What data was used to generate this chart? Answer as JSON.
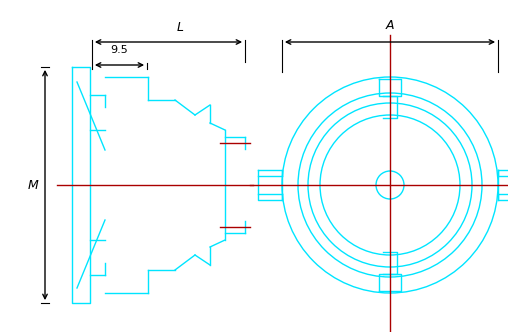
{
  "bg_color": "#ffffff",
  "cyan": "#00E5FF",
  "red": "#AA0000",
  "black": "#000000",
  "fig_width": 5.08,
  "fig_height": 3.32,
  "dpi": 100,
  "label_L": "L",
  "label_95": "9.5",
  "label_M": "M",
  "label_A": "A",
  "lw": 1.0
}
